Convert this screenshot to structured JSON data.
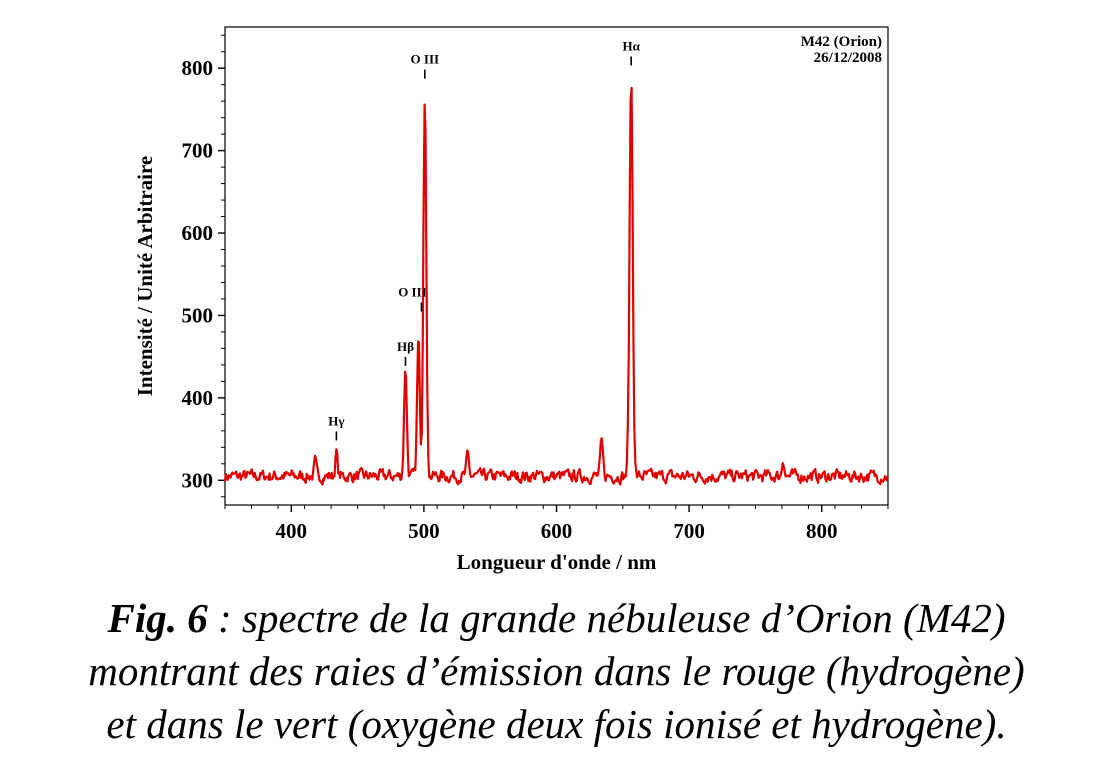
{
  "chart_data": {
    "type": "line",
    "title": "",
    "xlabel": "Longueur d'onde / nm",
    "ylabel": "Intensité / Unité Arbitraire",
    "xlim": [
      350,
      850
    ],
    "ylim": [
      270,
      850
    ],
    "xticks": [
      400,
      500,
      600,
      700,
      800
    ],
    "yticks": [
      300,
      400,
      500,
      600,
      700,
      800
    ],
    "grid": false,
    "legend": "none",
    "series_color": "#e00000",
    "annotation_box": [
      "M42 (Orion)",
      "26/12/2008"
    ],
    "baseline": 305,
    "noise_amplitude": 9,
    "peaks": [
      {
        "x": 418,
        "y": 322,
        "w": 0.8
      },
      {
        "x": 434,
        "y": 335,
        "w": 0.8
      },
      {
        "x": 486.1,
        "y": 440,
        "w": 1.0
      },
      {
        "x": 495.9,
        "y": 472,
        "w": 1.0
      },
      {
        "x": 500.7,
        "y": 774,
        "w": 1.1
      },
      {
        "x": 533,
        "y": 330,
        "w": 0.9
      },
      {
        "x": 634,
        "y": 345,
        "w": 1.0
      },
      {
        "x": 656.3,
        "y": 790,
        "w": 1.2
      },
      {
        "x": 771,
        "y": 326,
        "w": 0.9
      }
    ],
    "line_labels": [
      {
        "text": "Hγ",
        "x": 434,
        "y": 335
      },
      {
        "text": "Hβ",
        "x": 486.1,
        "y": 440
      },
      {
        "text": "O III",
        "x": 495.9,
        "y": 472
      },
      {
        "text": "O III",
        "x": 500.7,
        "y": 774
      },
      {
        "text": "Hα",
        "x": 656.3,
        "y": 790
      }
    ]
  },
  "caption": {
    "fig_label": "Fig. 6",
    "line1_rest": " : spectre de la grande nébuleuse d’Orion (M42)",
    "line2": "montrant des raies d’émission dans le rouge (hydrogène)",
    "line3": "et dans le vert (oxygène deux fois ionisé et hydrogène)."
  }
}
